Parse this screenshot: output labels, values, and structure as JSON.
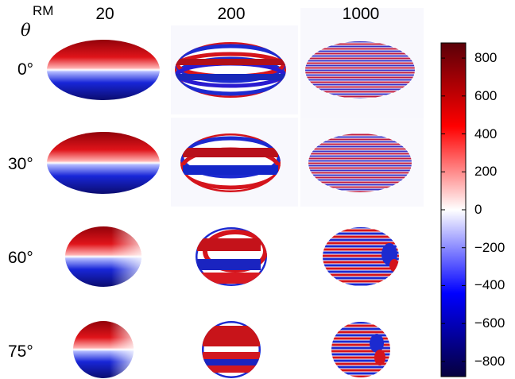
{
  "header": {
    "theta_symbol": "θ",
    "rm_symbol": "RM"
  },
  "columns": [
    {
      "label": "20",
      "value": 20
    },
    {
      "label": "200",
      "value": 200
    },
    {
      "label": "1000",
      "value": 1000
    }
  ],
  "rows": [
    {
      "label": "0°",
      "theta": 0
    },
    {
      "label": "30°",
      "theta": 30
    },
    {
      "label": "60°",
      "theta": 60
    },
    {
      "label": "75°",
      "theta": 75
    }
  ],
  "colorbar": {
    "min": -880,
    "max": 880,
    "ticks": [
      {
        "value": 800,
        "label": "800"
      },
      {
        "value": 600,
        "label": "600"
      },
      {
        "value": 400,
        "label": "400"
      },
      {
        "value": 200,
        "label": "200"
      },
      {
        "value": 0,
        "label": "0"
      },
      {
        "value": -200,
        "label": "−200"
      },
      {
        "value": -400,
        "label": "−400"
      },
      {
        "value": -600,
        "label": "−600"
      },
      {
        "value": -800,
        "label": "−800"
      }
    ],
    "colors": {
      "dark_red": "#67000d",
      "red": "#ff0000",
      "white": "#ffffff",
      "blue": "#0000ff",
      "dark_blue": "#08004a"
    }
  }
}
